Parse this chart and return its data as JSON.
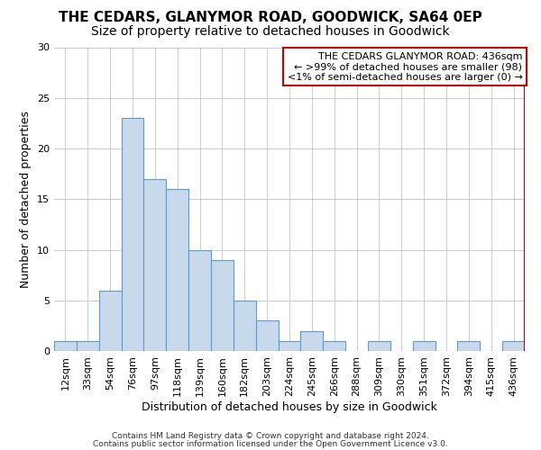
{
  "title": "THE CEDARS, GLANYMOR ROAD, GOODWICK, SA64 0EP",
  "subtitle": "Size of property relative to detached houses in Goodwick",
  "xlabel": "Distribution of detached houses by size in Goodwick",
  "ylabel": "Number of detached properties",
  "categories": [
    "12sqm",
    "33sqm",
    "54sqm",
    "76sqm",
    "97sqm",
    "118sqm",
    "139sqm",
    "160sqm",
    "182sqm",
    "203sqm",
    "224sqm",
    "245sqm",
    "266sqm",
    "288sqm",
    "309sqm",
    "330sqm",
    "351sqm",
    "372sqm",
    "394sqm",
    "415sqm",
    "436sqm"
  ],
  "values": [
    1,
    1,
    6,
    23,
    17,
    16,
    10,
    9,
    5,
    3,
    1,
    2,
    1,
    0,
    1,
    0,
    1,
    0,
    1,
    0,
    1
  ],
  "bar_color": "#c9d9ec",
  "bar_edge_color": "#5b9bd5",
  "ylim": [
    0,
    30
  ],
  "yticks": [
    0,
    5,
    10,
    15,
    20,
    25,
    30
  ],
  "highlight_line_color": "#cc0000",
  "annotation_line1": "THE CEDARS GLANYMOR ROAD: 436sqm",
  "annotation_line2": "← >99% of detached houses are smaller (98)",
  "annotation_line3": "<1% of semi-detached houses are larger (0) →",
  "footer_line1": "Contains HM Land Registry data © Crown copyright and database right 2024.",
  "footer_line2": "Contains public sector information licensed under the Open Government Licence v3.0.",
  "bg_color": "#ffffff",
  "grid_color": "#cccccc",
  "title_fontsize": 11,
  "subtitle_fontsize": 10,
  "axis_label_fontsize": 9,
  "tick_fontsize": 8,
  "annotation_fontsize": 8,
  "footer_fontsize": 6.5
}
